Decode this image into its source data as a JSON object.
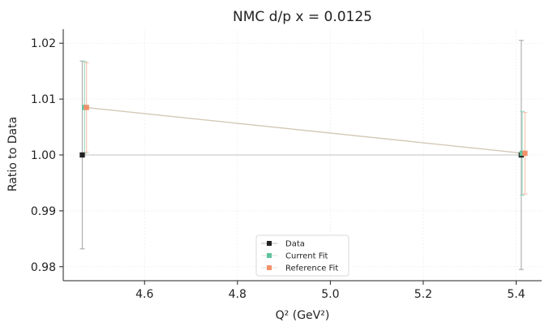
{
  "chart_data": {
    "type": "line",
    "title": "NMC d/p x = 0.0125",
    "xlabel": "Q² (GeV²)",
    "ylabel": "Ratio to Data",
    "xlim": [
      4.425,
      5.455
    ],
    "ylim": [
      0.9775,
      1.0225
    ],
    "xticks": [
      4.6,
      4.8,
      5.0,
      5.2,
      5.4
    ],
    "xtick_labels": [
      "4.6",
      "4.8",
      "5.0",
      "5.2",
      "5.4"
    ],
    "yticks": [
      0.98,
      0.99,
      1.0,
      1.01,
      1.02
    ],
    "ytick_labels": [
      "0.98",
      "0.99",
      "1.00",
      "1.01",
      "1.02"
    ],
    "grid": true,
    "legend_position": "lower-center",
    "series": [
      {
        "name": "Data",
        "color": "#222222",
        "line_color": "#bbbbbb",
        "marker": "square",
        "x": [
          4.466,
          5.411
        ],
        "y": [
          1.0,
          1.0
        ],
        "yerr": [
          0.0168,
          0.0205
        ]
      },
      {
        "name": "Current Fit",
        "color": "#5fc4a0",
        "line_color": "#d2c8b4",
        "marker": "square",
        "x": [
          4.471,
          5.413
        ],
        "y": [
          1.0085,
          1.0003
        ],
        "yerr": [
          0.0082,
          0.0075
        ]
      },
      {
        "name": "Reference Fit",
        "color": "#f4906a",
        "line_color": "#d2c8b4",
        "marker": "square",
        "x": [
          4.475,
          5.419
        ],
        "y": [
          1.0085,
          1.0003
        ],
        "yerr": [
          0.008,
          0.0073
        ]
      }
    ]
  }
}
